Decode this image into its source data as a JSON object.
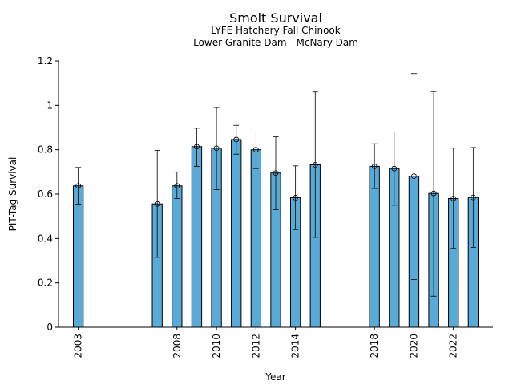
{
  "chart_data": {
    "type": "bar",
    "title": "Smolt Survival",
    "subtitle_1": "LYFE Hatchery Fall Chinook",
    "subtitle_2": "Lower Granite Dam - McNary Dam",
    "xlabel": "Year",
    "ylabel": "PIT-Tag Survival",
    "xlim": [
      2002.0,
      2024.0
    ],
    "ylim": [
      0,
      1.2
    ],
    "xticks": [
      2003,
      2008,
      2010,
      2012,
      2014,
      2018,
      2020,
      2022
    ],
    "yticks": [
      0,
      0.2,
      0.4,
      0.6,
      0.8,
      1,
      1.2
    ],
    "ytick_labels": [
      "0",
      "0.2",
      "0.4",
      "0.6",
      "0.8",
      "1",
      "1.2"
    ],
    "bar_color": "#5aaad8",
    "series": [
      {
        "x": [
          2003,
          2007,
          2008,
          2009,
          2010,
          2011,
          2012,
          2013,
          2014,
          2015,
          2018,
          2019,
          2020,
          2021,
          2022,
          2023
        ],
        "values": [
          0.637,
          0.556,
          0.637,
          0.814,
          0.807,
          0.846,
          0.8,
          0.695,
          0.584,
          0.732,
          0.725,
          0.715,
          0.681,
          0.603,
          0.58,
          0.585
        ],
        "lower": [
          0.555,
          0.315,
          0.58,
          0.725,
          0.62,
          0.78,
          0.715,
          0.53,
          0.44,
          0.405,
          0.625,
          0.55,
          0.215,
          0.14,
          0.355,
          0.36
        ],
        "upper": [
          0.72,
          0.797,
          0.7,
          0.897,
          0.99,
          0.91,
          0.88,
          0.858,
          0.727,
          1.06,
          0.827,
          0.88,
          1.143,
          1.062,
          0.807,
          0.81
        ]
      }
    ]
  }
}
